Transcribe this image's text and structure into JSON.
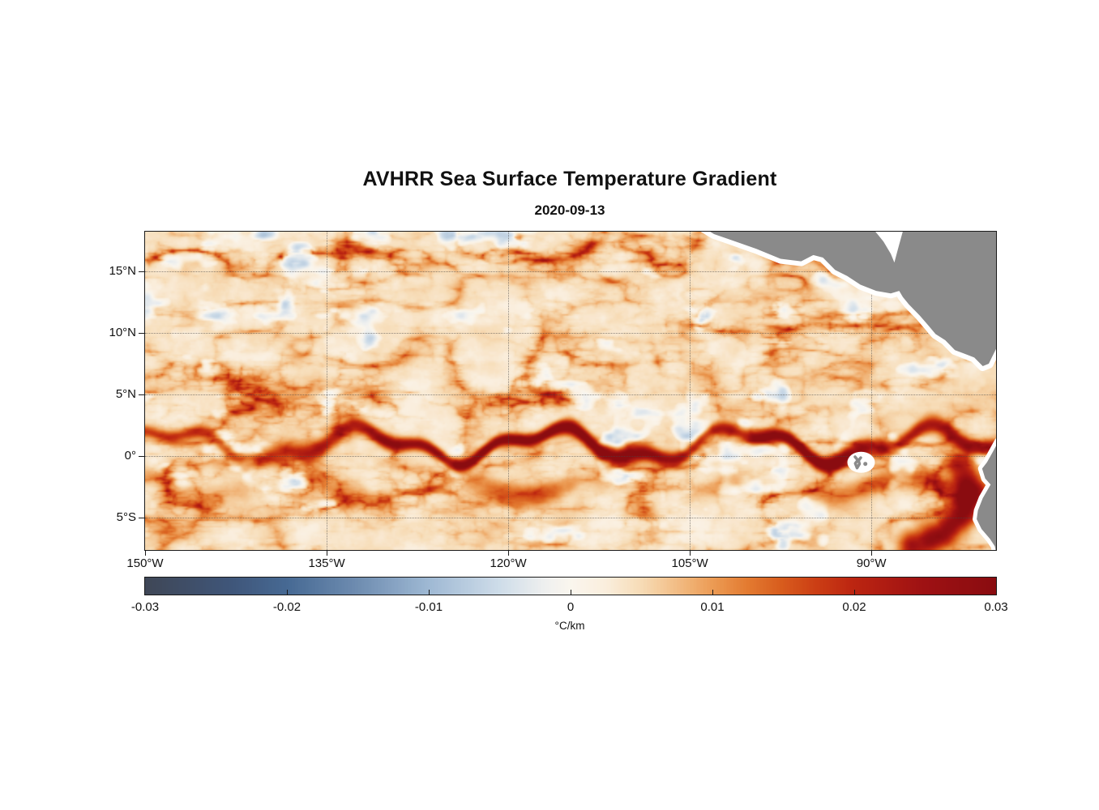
{
  "chart": {
    "title": "AVHRR Sea Surface Temperature Gradient",
    "date": "2020-09-13"
  },
  "chart_data": {
    "type": "heatmap",
    "title": "AVHRR Sea Surface Temperature Gradient",
    "subtitle_date": "2020-09-13",
    "x_axis": {
      "kind": "longitude",
      "range_lon": [
        -150,
        -79.7
      ],
      "ticks": [
        {
          "lon": -150,
          "label": "150°W"
        },
        {
          "lon": -135,
          "label": "135°W"
        },
        {
          "lon": -120,
          "label": "120°W"
        },
        {
          "lon": -105,
          "label": "105°W"
        },
        {
          "lon": -90,
          "label": "90°W"
        }
      ]
    },
    "y_axis": {
      "kind": "latitude",
      "range_lat": [
        -7.6,
        18.2
      ],
      "ticks": [
        {
          "lat": 15,
          "label": "15°N"
        },
        {
          "lat": 10,
          "label": "10°N"
        },
        {
          "lat": 5,
          "label": "5°N"
        },
        {
          "lat": 0,
          "label": "0°"
        },
        {
          "lat": -5,
          "label": "5°S"
        }
      ]
    },
    "colorbar": {
      "label": "°C/km",
      "min": -0.03,
      "max": 0.03,
      "ticks": [
        {
          "v": -0.03,
          "label": "-0.03"
        },
        {
          "v": -0.02,
          "label": "-0.02"
        },
        {
          "v": -0.01,
          "label": "-0.01"
        },
        {
          "v": 0,
          "label": "0"
        },
        {
          "v": 0.01,
          "label": "0.01"
        },
        {
          "v": 0.02,
          "label": "0.02"
        },
        {
          "v": 0.03,
          "label": "0.03"
        }
      ]
    },
    "colormap_stops": [
      {
        "t": 0.0,
        "color": "#3f4757"
      },
      {
        "t": 0.1,
        "color": "#3f567a"
      },
      {
        "t": 0.1667,
        "color": "#476a94"
      },
      {
        "t": 0.25,
        "color": "#6f8db1"
      },
      {
        "t": 0.3333,
        "color": "#9fb9d4"
      },
      {
        "t": 0.4167,
        "color": "#cfdde9"
      },
      {
        "t": 0.47,
        "color": "#eff0ef"
      },
      {
        "t": 0.5,
        "color": "#faf6ee"
      },
      {
        "t": 0.5417,
        "color": "#faeedd"
      },
      {
        "t": 0.5833,
        "color": "#f7dcb6"
      },
      {
        "t": 0.625,
        "color": "#f2bd85"
      },
      {
        "t": 0.6667,
        "color": "#ec9c55"
      },
      {
        "t": 0.7083,
        "color": "#e37b31"
      },
      {
        "t": 0.75,
        "color": "#d85b1d"
      },
      {
        "t": 0.7917,
        "color": "#cb3d14"
      },
      {
        "t": 0.8333,
        "color": "#bc2511"
      },
      {
        "t": 0.9167,
        "color": "#9e1113"
      },
      {
        "t": 1.0,
        "color": "#8a0c10"
      }
    ],
    "grid": {
      "on": true,
      "style": "dotted"
    },
    "land_color": "#8a8a8a",
    "observed_features": [
      "Mostly weak positive SST gradients (pale cream/orange) across the basin",
      "Strong frontal band with wave-like cusps along 0-3N from ~140W to the American coast (tropical instability waves), peak ~0.03 C/km",
      "Secondary filament band near 2-4S",
      "Curved frontal filaments near 15-18N and along 9-11N east of ~110W",
      "Very strong coastal upwelling front off Ecuador/Peru near 80-85W, 1-8S",
      "Gray land mask: Central America upper right, South America lower right; Galapagos Islands near 91W 0.5S",
      "Scattered faint negative (bluish-gray) gradient patches"
    ],
    "fronts": {
      "base_env": 0.42,
      "bands": [
        {
          "lat": 16.6,
          "sigma": 2.0,
          "weight": 0.55
        },
        {
          "lat": 9.6,
          "sigma": 1.7,
          "weight": 0.6,
          "ramp": {
            "from": -122,
            "to": -110
          }
        },
        {
          "lat": 5.0,
          "sigma": 2.1,
          "weight": 0.75,
          "ramp": {
            "from": -104,
            "to": -120
          }
        },
        {
          "lat": -3.1,
          "sigma": 2.1,
          "weight": 0.55
        }
      ],
      "equatorial": {
        "base_lat": 0.9,
        "w1a": 1.15,
        "w1k": 0.4,
        "w1p": 0.7,
        "w2a": 0.5,
        "w2k": 1.05,
        "w2p": 2.4,
        "strength": 0.031
      },
      "south_band": {
        "base_lat": -2.5,
        "w1a": 0.8,
        "w1k": 0.5,
        "w1p": 1.6,
        "width": 0.9,
        "strength": 0.015
      },
      "peru_coastal": {
        "points": [
          [
            -86.5,
            -7.3
          ],
          [
            -84.0,
            -6.3
          ],
          [
            -82.4,
            -4.6
          ],
          [
            -81.8,
            -2.6
          ],
          [
            -82.6,
            -0.9
          ]
        ],
        "width": 1.1,
        "strength": 0.026
      }
    },
    "land": {
      "polygons": [
        {
          "name": "central-america",
          "fill": "land",
          "halo": 12,
          "points": [
            [
              -104.0,
              18.6
            ],
            [
              -103.0,
              18.0
            ],
            [
              -101.5,
              17.5
            ],
            [
              -99.5,
              16.8
            ],
            [
              -97.5,
              16.0
            ],
            [
              -95.8,
              15.8
            ],
            [
              -94.8,
              16.3
            ],
            [
              -94.0,
              16.1
            ],
            [
              -93.0,
              15.1
            ],
            [
              -92.0,
              14.6
            ],
            [
              -90.9,
              13.9
            ],
            [
              -89.6,
              13.4
            ],
            [
              -88.4,
              13.2
            ],
            [
              -87.7,
              13.4
            ],
            [
              -87.4,
              12.9
            ],
            [
              -86.9,
              12.3
            ],
            [
              -86.0,
              11.4
            ],
            [
              -85.3,
              10.6
            ],
            [
              -84.7,
              9.9
            ],
            [
              -83.9,
              9.4
            ],
            [
              -83.1,
              8.6
            ],
            [
              -82.3,
              8.3
            ],
            [
              -81.5,
              8.0
            ],
            [
              -80.8,
              7.3
            ],
            [
              -80.3,
              7.5
            ],
            [
              -80.0,
              8.1
            ],
            [
              -79.6,
              8.9
            ],
            [
              -79.2,
              8.6
            ],
            [
              -78.9,
              7.9
            ],
            [
              -79.0,
              6.8
            ],
            [
              -78.6,
              5.8
            ],
            [
              -78.0,
              5.2
            ],
            [
              -77.0,
              5.0
            ],
            [
              -77.0,
              19.5
            ],
            [
              -104.0,
              19.5
            ]
          ]
        },
        {
          "name": "caribbean-nodata",
          "fill": "water",
          "halo": 0,
          "points": [
            [
              -90.0,
              18.6
            ],
            [
              -89.0,
              17.4
            ],
            [
              -88.4,
              16.4
            ],
            [
              -88.1,
              15.7
            ],
            [
              -87.8,
              16.8
            ],
            [
              -87.3,
              18.6
            ]
          ]
        },
        {
          "name": "south-america",
          "fill": "land",
          "halo": 10,
          "points": [
            [
              -79.5,
              1.2
            ],
            [
              -80.0,
              0.3
            ],
            [
              -80.45,
              -0.5
            ],
            [
              -80.85,
              -1.0
            ],
            [
              -80.6,
              -1.8
            ],
            [
              -80.15,
              -2.3
            ],
            [
              -80.8,
              -3.4
            ],
            [
              -81.2,
              -4.4
            ],
            [
              -81.3,
              -5.1
            ],
            [
              -80.9,
              -5.9
            ],
            [
              -80.2,
              -6.7
            ],
            [
              -79.8,
              -7.3
            ],
            [
              -79.6,
              -8.3
            ],
            [
              -77.0,
              -8.5
            ],
            [
              -77.0,
              1.5
            ]
          ]
        }
      ],
      "galapagos": {
        "center": [
          -90.85,
          -0.5
        ],
        "isabela": [
          [
            -91.35,
            -0.05
          ],
          [
            -91.12,
            -0.32
          ],
          [
            -91.33,
            -0.58
          ],
          [
            -91.18,
            -0.95
          ],
          [
            -90.98,
            -0.62
          ],
          [
            -91.06,
            -0.35
          ],
          [
            -90.88,
            -0.12
          ]
        ],
        "dot": [
          -90.5,
          -0.62
        ]
      }
    }
  }
}
